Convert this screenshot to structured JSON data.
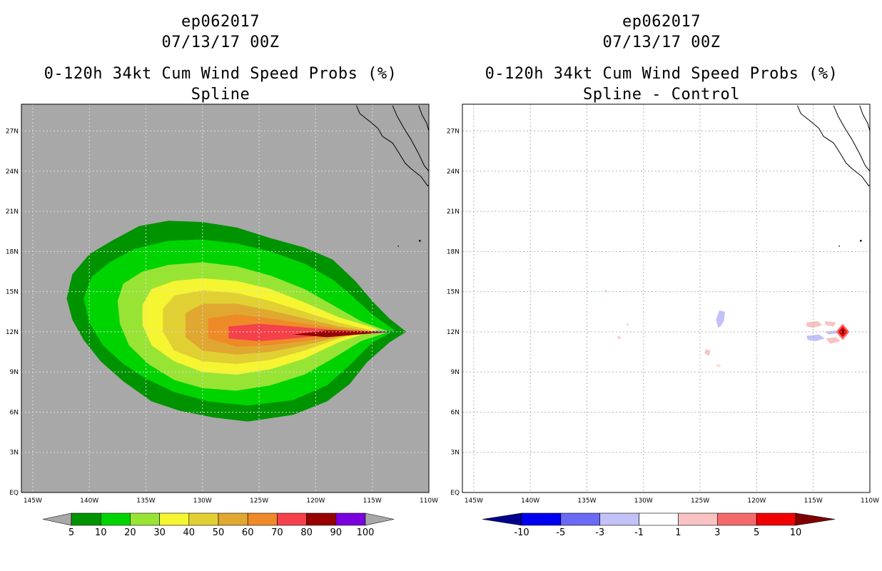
{
  "left_panel": {
    "title_line1": "ep062017",
    "title_line2": "07/13/17 00Z",
    "title_line3": "0-120h 34kt Cum Wind Speed Probs (%)",
    "title_line4": "Spline"
  },
  "right_panel": {
    "title_line1": "ep062017",
    "title_line2": "07/13/17 00Z",
    "title_line3": "0-120h 34kt Cum Wind Speed Probs (%)",
    "title_line4": "Spline - Control"
  },
  "chart_data": [
    {
      "type": "heatmap",
      "title": "0-120h 34kt Cum Wind Speed Probs (%)",
      "subtitle": "Spline",
      "storm": "ep062017",
      "time": "07/13/17 00Z",
      "x_ticks": [
        "145W",
        "140W",
        "135W",
        "130W",
        "125W",
        "120W",
        "115W",
        "110W"
      ],
      "y_ticks": [
        "EQ",
        "3N",
        "6N",
        "9N",
        "12N",
        "15N",
        "18N",
        "21N",
        "24N",
        "27N"
      ],
      "xlim": [
        -146,
        -110
      ],
      "ylim": [
        0,
        29
      ],
      "grid": true,
      "colorbar": {
        "labels": [
          "5",
          "10",
          "20",
          "30",
          "40",
          "50",
          "60",
          "70",
          "80",
          "90",
          "100"
        ],
        "colors": [
          "#009300",
          "#00d400",
          "#98e435",
          "#f5f531",
          "#e1d033",
          "#e0a830",
          "#ef8a28",
          "#f4414a",
          "#960000",
          "#7a00dd"
        ],
        "end_color_low": "#a8a8a8",
        "end_color_high": "#a8a8a8"
      },
      "contours": [
        {
          "level": 5,
          "color": "#009300",
          "polygon": [
            [
              -142,
              14.5
            ],
            [
              -141.5,
              16.3
            ],
            [
              -140,
              17.8
            ],
            [
              -138,
              18.8
            ],
            [
              -135.6,
              19.9
            ],
            [
              -133,
              20.3
            ],
            [
              -130,
              20.2
            ],
            [
              -127,
              19.8
            ],
            [
              -124,
              19
            ],
            [
              -121,
              18.3
            ],
            [
              -118.5,
              17.4
            ],
            [
              -116.5,
              15.8
            ],
            [
              -115,
              14.3
            ],
            [
              -113.5,
              13
            ],
            [
              -112,
              12
            ],
            [
              -113.5,
              11.2
            ],
            [
              -115.5,
              9.7
            ],
            [
              -117,
              8.1
            ],
            [
              -119,
              6.8
            ],
            [
              -122,
              5.8
            ],
            [
              -126,
              5.3
            ],
            [
              -129,
              5.6
            ],
            [
              -132,
              6.1
            ],
            [
              -134.5,
              6.8
            ],
            [
              -137,
              8.3
            ],
            [
              -139,
              9.8
            ],
            [
              -140.5,
              11.4
            ],
            [
              -141.5,
              12.9
            ]
          ]
        },
        {
          "level": 10,
          "color": "#00d400",
          "polygon": [
            [
              -140.5,
              14.5
            ],
            [
              -139.8,
              16.1
            ],
            [
              -138.2,
              17.2
            ],
            [
              -136,
              18.2
            ],
            [
              -133,
              18.8
            ],
            [
              -130,
              18.9
            ],
            [
              -127,
              18.6
            ],
            [
              -124,
              18
            ],
            [
              -121,
              17.1
            ],
            [
              -118.5,
              15.9
            ],
            [
              -116.8,
              14.7
            ],
            [
              -115,
              13.3
            ],
            [
              -113,
              12.1
            ],
            [
              -115,
              11.2
            ],
            [
              -117,
              9.5
            ],
            [
              -119,
              8
            ],
            [
              -122,
              6.9
            ],
            [
              -126,
              6.5
            ],
            [
              -129.5,
              6.8
            ],
            [
              -132.5,
              7.5
            ],
            [
              -135,
              8.5
            ],
            [
              -137,
              9.6
            ],
            [
              -138.8,
              11
            ],
            [
              -140,
              12.7
            ]
          ]
        },
        {
          "level": 20,
          "color": "#98e435",
          "polygon": [
            [
              -137.5,
              14.3
            ],
            [
              -137,
              15.6
            ],
            [
              -135.3,
              16.5
            ],
            [
              -133,
              17
            ],
            [
              -130,
              17.2
            ],
            [
              -127,
              16.9
            ],
            [
              -124,
              16.2
            ],
            [
              -121,
              15.2
            ],
            [
              -118.5,
              14
            ],
            [
              -116,
              12.8
            ],
            [
              -113.5,
              12
            ],
            [
              -116,
              11.3
            ],
            [
              -118.5,
              10
            ],
            [
              -121,
              8.8
            ],
            [
              -124,
              8
            ],
            [
              -127,
              7.6
            ],
            [
              -130,
              7.8
            ],
            [
              -132.5,
              8.4
            ],
            [
              -134.8,
              9.6
            ],
            [
              -136.5,
              11
            ],
            [
              -137.3,
              12.6
            ]
          ]
        },
        {
          "level": 30,
          "color": "#f5f531",
          "polygon": [
            [
              -135.3,
              14
            ],
            [
              -134.5,
              15.2
            ],
            [
              -132.5,
              15.8
            ],
            [
              -130,
              16
            ],
            [
              -127,
              15.8
            ],
            [
              -124,
              15.2
            ],
            [
              -121,
              14.2
            ],
            [
              -118,
              13.1
            ],
            [
              -114.5,
              12.2
            ],
            [
              -118,
              11.2
            ],
            [
              -121,
              10
            ],
            [
              -124,
              9.2
            ],
            [
              -127,
              8.8
            ],
            [
              -130,
              9
            ],
            [
              -132.5,
              9.8
            ],
            [
              -134.5,
              11
            ],
            [
              -135.3,
              12.5
            ]
          ]
        },
        {
          "level": 40,
          "color": "#e1d033",
          "polygon": [
            [
              -133.5,
              13.7
            ],
            [
              -132.5,
              14.7
            ],
            [
              -130,
              15.1
            ],
            [
              -127,
              14.9
            ],
            [
              -124,
              14.3
            ],
            [
              -121,
              13.5
            ],
            [
              -118,
              12.7
            ],
            [
              -115,
              12.1
            ],
            [
              -118,
              11.5
            ],
            [
              -121,
              10.6
            ],
            [
              -124,
              9.9
            ],
            [
              -127,
              9.6
            ],
            [
              -130,
              9.8
            ],
            [
              -132.5,
              10.6
            ],
            [
              -133.5,
              12
            ]
          ]
        },
        {
          "level": 50,
          "color": "#e0a830",
          "polygon": [
            [
              -131.5,
              13.4
            ],
            [
              -130,
              14.1
            ],
            [
              -127,
              14.1
            ],
            [
              -124,
              13.6
            ],
            [
              -121,
              13
            ],
            [
              -118,
              12.4
            ],
            [
              -115,
              12.05
            ],
            [
              -118,
              11.6
            ],
            [
              -121,
              11
            ],
            [
              -124,
              10.5
            ],
            [
              -127,
              10.3
            ],
            [
              -130,
              10.6
            ],
            [
              -131.5,
              11.6
            ]
          ]
        },
        {
          "level": 60,
          "color": "#ef8a28",
          "polygon": [
            [
              -129.5,
              13
            ],
            [
              -127,
              13.3
            ],
            [
              -124,
              13
            ],
            [
              -121,
              12.6
            ],
            [
              -118,
              12.25
            ],
            [
              -115,
              12
            ],
            [
              -118,
              11.7
            ],
            [
              -121,
              11.3
            ],
            [
              -124,
              11
            ],
            [
              -127,
              10.9
            ],
            [
              -129.5,
              11.5
            ]
          ]
        },
        {
          "level": 70,
          "color": "#f4414a",
          "polygon": [
            [
              -127.7,
              12.4
            ],
            [
              -125,
              12.6
            ],
            [
              -122,
              12.4
            ],
            [
              -118.5,
              12.15
            ],
            [
              -115,
              12
            ],
            [
              -118.5,
              11.8
            ],
            [
              -122,
              11.5
            ],
            [
              -125,
              11.3
            ],
            [
              -127.7,
              11.5
            ]
          ]
        },
        {
          "level": 80,
          "color": "#960000",
          "polygon": [
            [
              -122,
              11.8
            ],
            [
              -119,
              12.1
            ],
            [
              -115.5,
              12.05
            ],
            [
              -113,
              12
            ],
            [
              -115.5,
              11.85
            ],
            [
              -119,
              11.6
            ]
          ]
        },
        {
          "level": 90,
          "color": "#7a00dd",
          "polygon": [
            [
              -115,
              12.05
            ],
            [
              -113.5,
              12.03
            ],
            [
              -112.7,
              12
            ],
            [
              -113.5,
              11.97
            ],
            [
              -115,
              11.95
            ]
          ]
        }
      ]
    },
    {
      "type": "heatmap",
      "title": "0-120h 34kt Cum Wind Speed Probs (%)",
      "subtitle": "Spline - Control",
      "storm": "ep062017",
      "time": "07/13/17 00Z",
      "x_ticks": [
        "145W",
        "140W",
        "135W",
        "130W",
        "125W",
        "120W",
        "115W",
        "110W"
      ],
      "y_ticks": [
        "EQ",
        "3N",
        "6N",
        "9N",
        "12N",
        "15N",
        "18N",
        "21N",
        "24N",
        "27N"
      ],
      "xlim": [
        -146,
        -110
      ],
      "ylim": [
        0,
        29
      ],
      "grid": true,
      "colorbar": {
        "labels": [
          "-10",
          "-5",
          "-3",
          "-1",
          "1",
          "3",
          "5",
          "10"
        ],
        "colors": [
          "#0000f0",
          "#6a6af4",
          "#c2c2f8",
          "#ffffff",
          "#f8c2c2",
          "#f46a6a",
          "#f00000"
        ],
        "end_color_low": "#00008c",
        "end_color_high": "#800000"
      },
      "contours": [
        {
          "level": -1,
          "color": "#c2c2f8",
          "polygon": [
            [
              -123.3,
              13.6
            ],
            [
              -122.8,
              13.5
            ],
            [
              -122.9,
              12.8
            ],
            [
              -123.2,
              12.4
            ],
            [
              -123.4,
              12.3
            ],
            [
              -123.6,
              12.9
            ]
          ]
        },
        {
          "level": -1,
          "color": "#c2c2f8",
          "polygon": [
            [
              -115.6,
              11.7
            ],
            [
              -114.5,
              11.8
            ],
            [
              -114,
              11.5
            ],
            [
              -114.8,
              11.3
            ],
            [
              -115.5,
              11.4
            ]
          ]
        },
        {
          "level": -1,
          "color": "#c2c2f8",
          "polygon": [
            [
              -114,
              12
            ],
            [
              -113,
              12.1
            ],
            [
              -112.8,
              11.9
            ],
            [
              -113.6,
              11.8
            ]
          ]
        },
        {
          "level": 1,
          "color": "#f8c2c2",
          "polygon": [
            [
              -133.5,
              15.1
            ],
            [
              -133.2,
              15.1
            ],
            [
              -133.3,
              14.9
            ]
          ]
        },
        {
          "level": 1,
          "color": "#f8c2c2",
          "polygon": [
            [
              -131.5,
              12.6
            ],
            [
              -131.3,
              12.6
            ],
            [
              -131.4,
              12.4
            ]
          ]
        },
        {
          "level": 1,
          "color": "#f8c2c2",
          "polygon": [
            [
              -132.3,
              11.7
            ],
            [
              -132,
              11.6
            ],
            [
              -132.2,
              11.4
            ]
          ]
        },
        {
          "level": 1,
          "color": "#f8c2c2",
          "polygon": [
            [
              -124.5,
              10.7
            ],
            [
              -124.1,
              10.6
            ],
            [
              -124.2,
              10.2
            ],
            [
              -124.6,
              10.4
            ]
          ]
        },
        {
          "level": 1,
          "color": "#f8c2c2",
          "polygon": [
            [
              -123.6,
              9.55
            ],
            [
              -123.1,
              9.5
            ],
            [
              -123.4,
              9.4
            ]
          ]
        },
        {
          "level": 1,
          "color": "#f8c2c2",
          "polygon": [
            [
              -115.6,
              12.7
            ],
            [
              -114.6,
              12.8
            ],
            [
              -114.2,
              12.5
            ],
            [
              -115,
              12.3
            ],
            [
              -115.6,
              12.4
            ]
          ]
        },
        {
          "level": 1,
          "color": "#f8c2c2",
          "polygon": [
            [
              -114,
              12.8
            ],
            [
              -113,
              12.7
            ],
            [
              -113.2,
              12.4
            ],
            [
              -113.9,
              12.5
            ]
          ]
        },
        {
          "level": 1,
          "color": "#f8c2c2",
          "polygon": [
            [
              -113.9,
              11.5
            ],
            [
              -113,
              11.6
            ],
            [
              -112.6,
              11.3
            ],
            [
              -113.5,
              11.1
            ]
          ]
        },
        {
          "level": 3,
          "color": "#f46a6a",
          "polygon": [
            [
              -112.4,
              12.6
            ],
            [
              -111.8,
              12
            ],
            [
              -112.4,
              11.4
            ],
            [
              -113,
              12
            ]
          ]
        },
        {
          "level": 5,
          "color": "#f00000",
          "polygon": [
            [
              -112.4,
              12.4
            ],
            [
              -112,
              12
            ],
            [
              -112.4,
              11.6
            ],
            [
              -112.8,
              12
            ]
          ]
        },
        {
          "level": 10,
          "color": "#800000",
          "polygon": [
            [
              -112.4,
              12.2
            ],
            [
              -112.2,
              12
            ],
            [
              -112.4,
              11.8
            ],
            [
              -112.6,
              12
            ]
          ]
        }
      ]
    }
  ]
}
